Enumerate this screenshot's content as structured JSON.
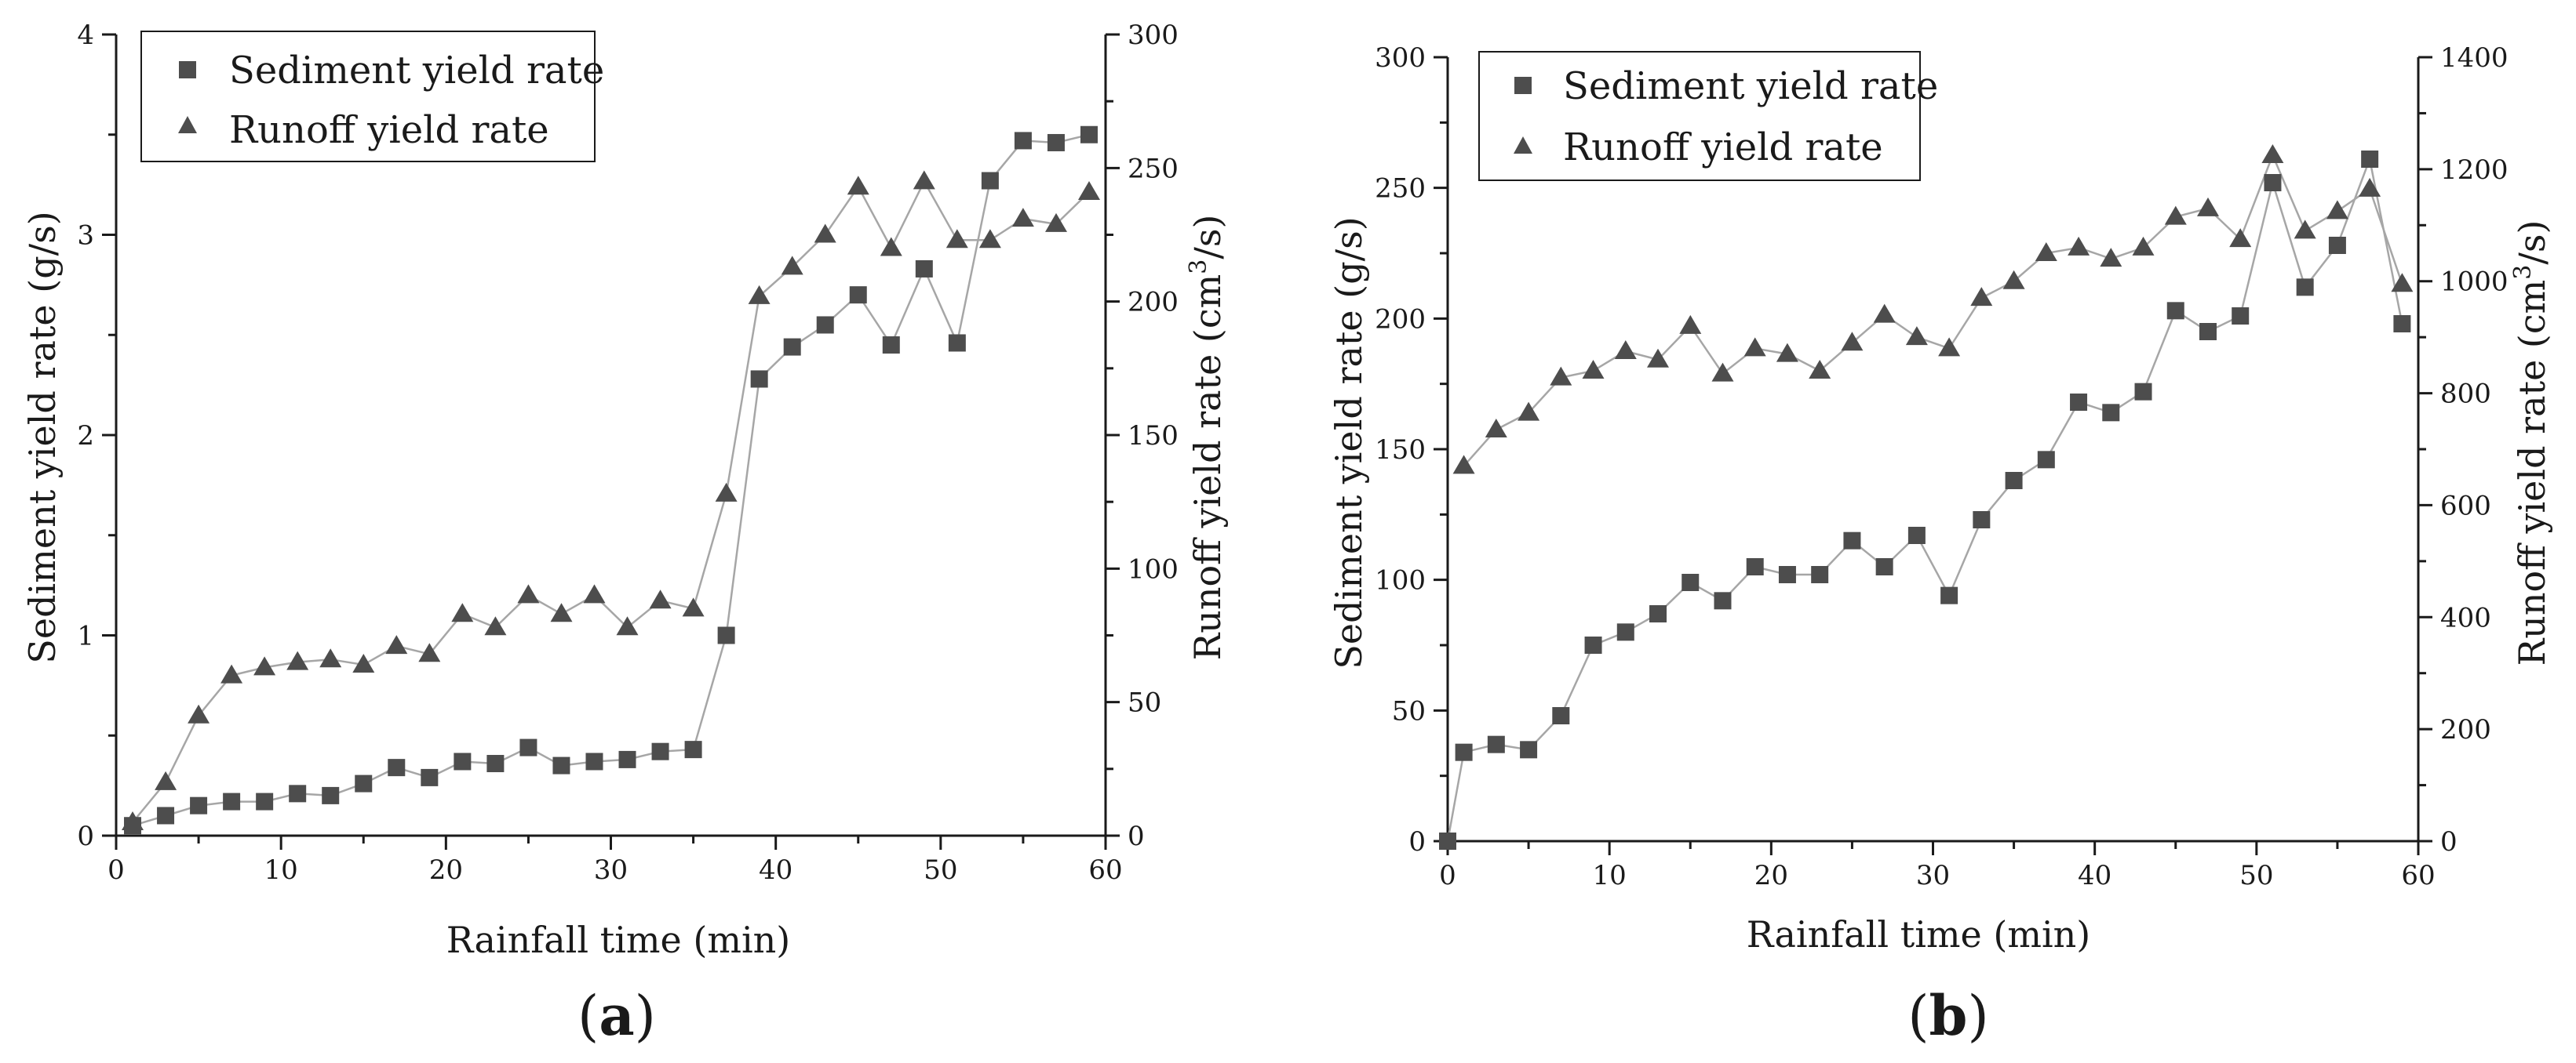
{
  "chart_data": [
    {
      "type": "scatter",
      "panel": "a",
      "xlabel": "Rainfall time (min)",
      "ylabel": "Sediment yield rate  (g/s)",
      "y2label_main": "Runoff yield rate  (cm",
      "y2label_sup": "3",
      "y2label_end": "/s)",
      "xlim": [
        0,
        60
      ],
      "ylim": [
        0,
        4
      ],
      "y2lim": [
        0,
        300
      ],
      "x_ticks": [
        0,
        10,
        20,
        30,
        40,
        50,
        60
      ],
      "y_ticks": [
        0,
        1,
        2,
        3,
        4
      ],
      "y2_ticks": [
        0,
        50,
        100,
        150,
        200,
        250,
        300
      ],
      "legend": [
        "Sediment yield rate",
        "Runoff yield rate"
      ],
      "series": [
        {
          "name": "Sediment yield rate",
          "axis": "left",
          "marker": "square",
          "x": [
            1,
            3,
            5,
            7,
            9,
            11,
            13,
            15,
            17,
            19,
            21,
            23,
            25,
            27,
            29,
            31,
            33,
            35,
            37,
            39,
            41,
            43,
            45,
            47,
            49,
            51,
            53,
            55,
            57,
            59
          ],
          "y": [
            0.05,
            0.1,
            0.15,
            0.17,
            0.17,
            0.21,
            0.2,
            0.26,
            0.34,
            0.29,
            0.37,
            0.36,
            0.44,
            0.35,
            0.37,
            0.38,
            0.42,
            0.43,
            1.0,
            2.28,
            2.44,
            2.55,
            2.7,
            2.45,
            2.83,
            2.46,
            3.27,
            3.47,
            3.46,
            3.5
          ]
        },
        {
          "name": "Runoff yield rate",
          "axis": "right",
          "marker": "triangle",
          "x": [
            1,
            3,
            5,
            7,
            9,
            11,
            13,
            15,
            17,
            19,
            21,
            23,
            25,
            27,
            29,
            31,
            33,
            35,
            37,
            39,
            41,
            43,
            45,
            47,
            49,
            51,
            53,
            55,
            57,
            59
          ],
          "y": [
            5,
            20,
            45,
            60,
            63,
            65,
            66,
            64,
            71,
            68,
            83,
            78,
            90,
            83,
            90,
            78,
            88,
            85,
            128,
            202,
            213,
            225,
            243,
            220,
            245,
            223,
            223,
            231,
            229,
            241
          ]
        }
      ]
    },
    {
      "type": "scatter",
      "panel": "b",
      "xlabel": "Rainfall time (min)",
      "ylabel": "Sediment yield rate  (g/s)",
      "y2label_main": "Runoff yield rate  (cm",
      "y2label_sup": "3",
      "y2label_end": "/s)",
      "xlim": [
        0,
        60
      ],
      "ylim": [
        0,
        300
      ],
      "y2lim": [
        0,
        1400
      ],
      "x_ticks": [
        0,
        10,
        20,
        30,
        40,
        50,
        60
      ],
      "y_ticks": [
        0,
        50,
        100,
        150,
        200,
        250,
        300
      ],
      "y2_ticks": [
        0,
        200,
        400,
        600,
        800,
        1000,
        1200,
        1400
      ],
      "legend": [
        "Sediment yield rate",
        "Runoff yield rate"
      ],
      "series": [
        {
          "name": "Sediment yield rate",
          "axis": "left",
          "marker": "square",
          "x": [
            0,
            1,
            3,
            5,
            7,
            9,
            11,
            13,
            15,
            17,
            19,
            21,
            23,
            25,
            27,
            29,
            31,
            33,
            35,
            37,
            39,
            41,
            43,
            45,
            47,
            49,
            51,
            53,
            55,
            57,
            59
          ],
          "y": [
            0,
            34,
            37,
            35,
            48,
            75,
            80,
            87,
            99,
            92,
            105,
            102,
            102,
            115,
            105,
            117,
            94,
            123,
            138,
            146,
            168,
            164,
            172,
            203,
            195,
            201,
            252,
            212,
            228,
            261,
            198
          ]
        },
        {
          "name": "Runoff yield rate",
          "axis": "right",
          "marker": "triangle",
          "x": [
            1,
            3,
            5,
            7,
            9,
            11,
            13,
            15,
            17,
            19,
            21,
            23,
            25,
            27,
            29,
            31,
            33,
            35,
            37,
            39,
            41,
            43,
            45,
            47,
            49,
            51,
            53,
            55,
            57,
            59
          ],
          "y": [
            670,
            735,
            765,
            828,
            840,
            875,
            860,
            920,
            835,
            880,
            870,
            840,
            890,
            940,
            900,
            880,
            970,
            1000,
            1050,
            1060,
            1040,
            1060,
            1115,
            1130,
            1075,
            1225,
            1090,
            1125,
            1165,
            995
          ]
        }
      ]
    }
  ],
  "panel_labels": {
    "a": {
      "open": "(",
      "letter": "a",
      "close": ")"
    },
    "b": {
      "open": "(",
      "letter": "b",
      "close": ")"
    }
  },
  "colors": {
    "marker": "#4d4d4d",
    "line": "#a6a6a6",
    "axis": "#1a1a1a"
  }
}
